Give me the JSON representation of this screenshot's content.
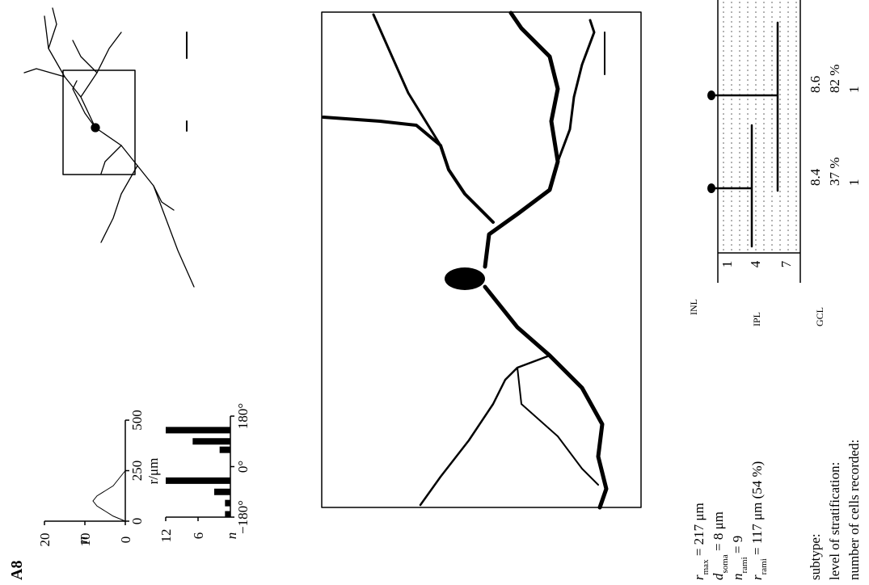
{
  "panel": {
    "label": "A8"
  },
  "sholl_plot": {
    "ylabel": "n",
    "xlabel": "r/μm",
    "ylim": [
      0,
      20
    ],
    "yticks": [
      0,
      10,
      20
    ],
    "xlim": [
      0,
      500
    ],
    "xticks": [
      0,
      250,
      500
    ],
    "r": [
      0,
      25,
      50,
      75,
      100,
      125,
      150,
      175,
      200,
      225,
      250
    ],
    "n": [
      0,
      3,
      5,
      7,
      8,
      7,
      5,
      3,
      2,
      1,
      0
    ]
  },
  "angle_histogram": {
    "ylabel": "n",
    "ylim": [
      0,
      12
    ],
    "yticks": [
      6,
      12
    ],
    "xlim": [
      -180,
      180
    ],
    "xticks": [
      {
        "value": -180,
        "label": "−180°"
      },
      {
        "value": 0,
        "label": "0°"
      },
      {
        "value": 180,
        "label": "180°"
      }
    ],
    "angles": [
      -170,
      -130,
      -90,
      -50,
      60,
      90,
      130
    ],
    "counts": [
      1,
      1,
      3,
      12,
      2,
      7,
      12
    ]
  },
  "parameters": [
    {
      "symbol": "r",
      "subscript": "max",
      "text": " = 217 μm"
    },
    {
      "symbol": "d",
      "subscript": "soma",
      "text": " = 8 μm"
    },
    {
      "symbol": "n",
      "subscript": "rami",
      "text": " = 9"
    },
    {
      "symbol": "r",
      "subscript": "rami",
      "text": " = 117 μm (54 %)"
    }
  ],
  "summary": {
    "labels": [
      "subtype:",
      "level of stratification:",
      "number of cells recorded:"
    ],
    "columns": [
      [
        "8.4",
        "37 %",
        "1"
      ],
      [
        "8.6",
        "82 %",
        "1"
      ]
    ]
  },
  "layers": {
    "names": [
      "INL",
      "IPL",
      "GCL"
    ],
    "strata": [
      "1",
      "4",
      "7"
    ]
  }
}
